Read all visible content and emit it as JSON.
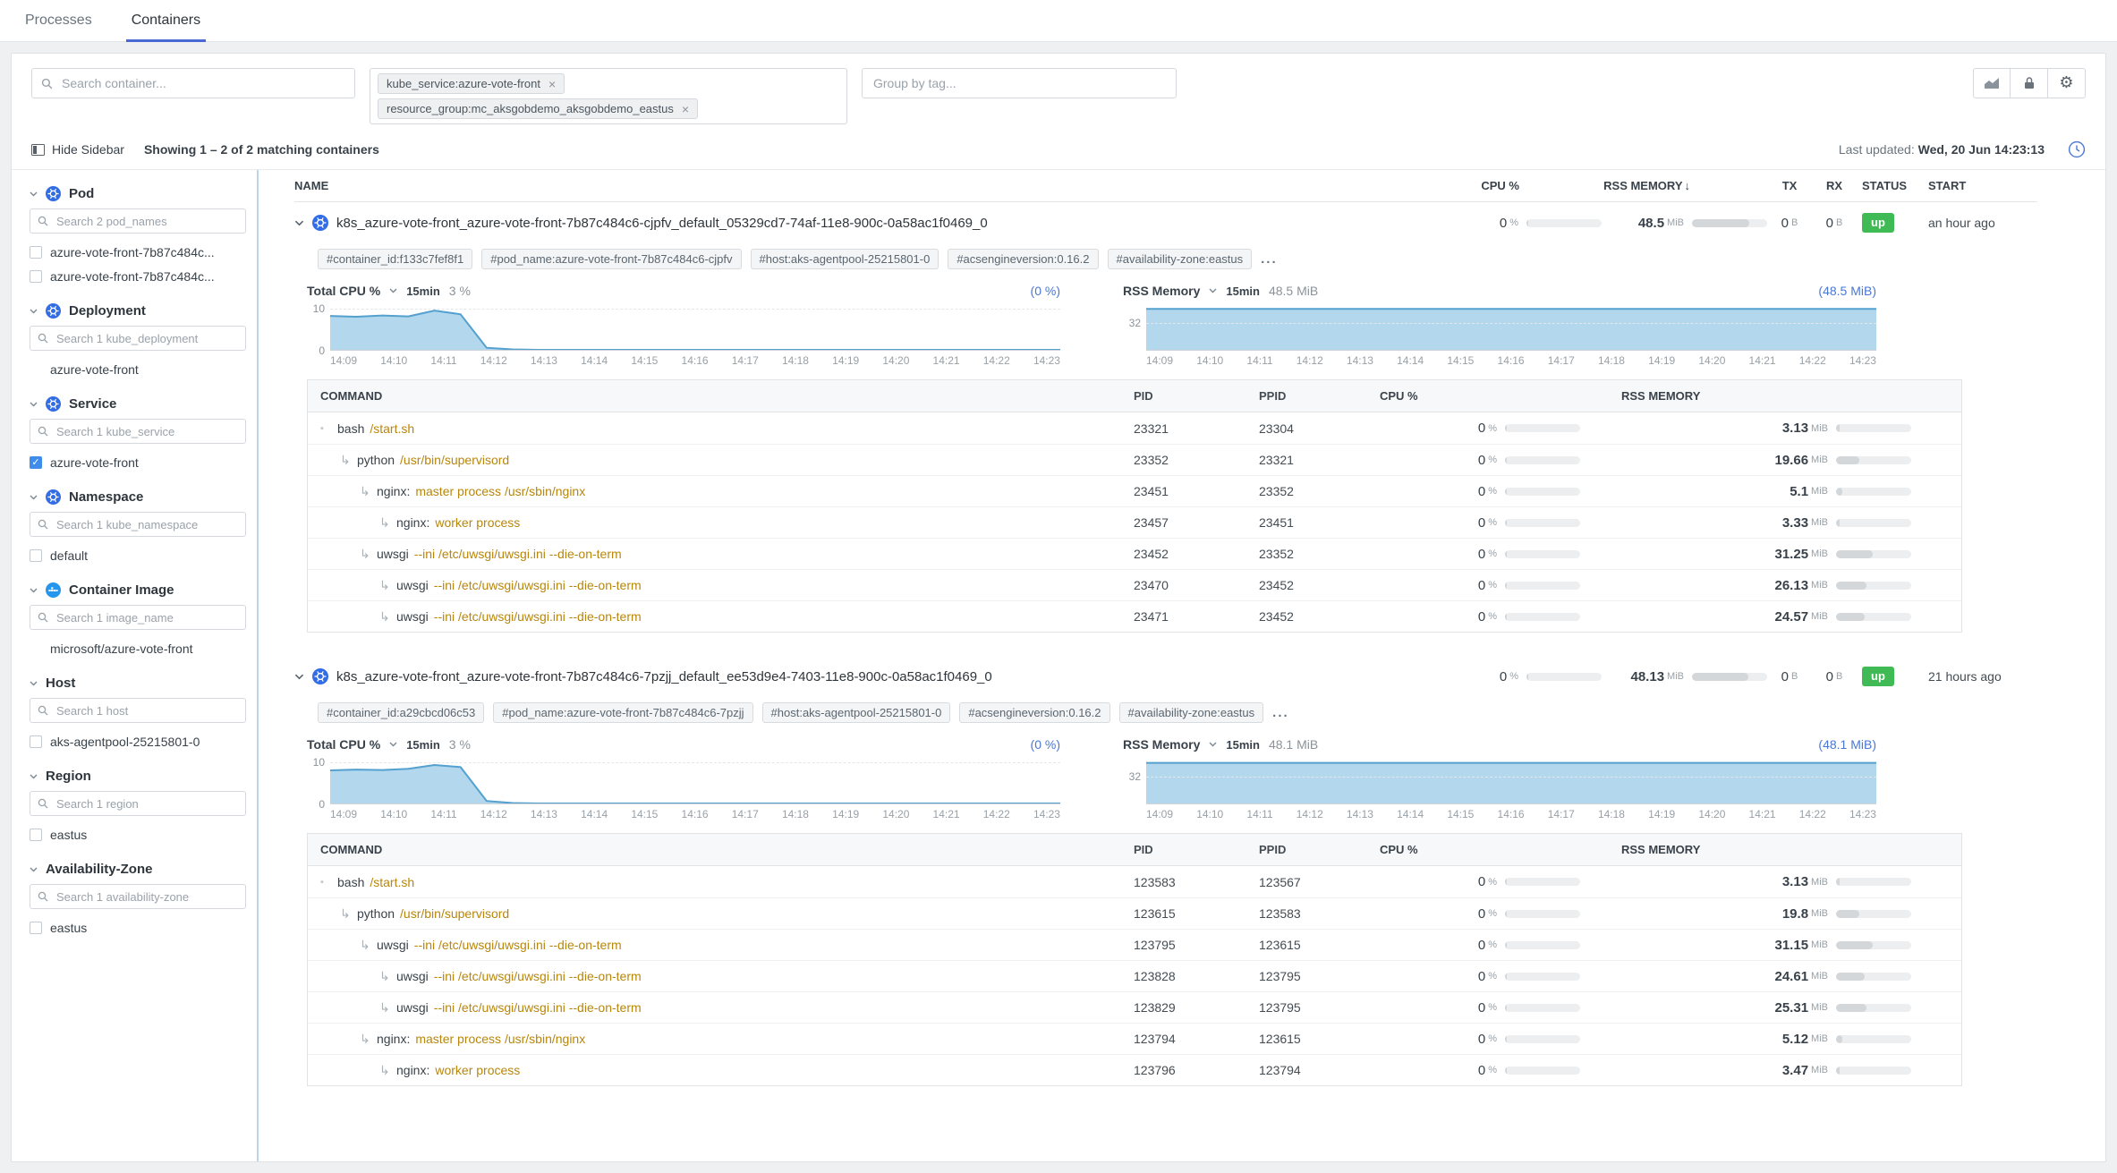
{
  "tabs": {
    "processes": "Processes",
    "containers": "Containers"
  },
  "toolbar": {
    "search_placeholder": "Search container...",
    "filters": [
      "kube_service:azure-vote-front",
      "resource_group:mc_aksgobdemo_aksgobdemo_eastus"
    ],
    "remove_icon": "×",
    "group_by_placeholder": "Group by tag..."
  },
  "subheader": {
    "hide_sidebar": "Hide Sidebar",
    "showing": "Showing 1 – 2 of 2 matching containers",
    "last_updated_label": "Last updated:",
    "last_updated_value": "Wed, 20 Jun 14:23:13"
  },
  "sidebar": {
    "facets": [
      {
        "label": "Pod",
        "icon": "kubernetes",
        "search": "Search 2 pod_names",
        "items": [
          {
            "label": "azure-vote-front-7b87c484c...",
            "checkbox": "unchecked"
          },
          {
            "label": "azure-vote-front-7b87c484c...",
            "checkbox": "unchecked"
          }
        ]
      },
      {
        "label": "Deployment",
        "icon": "kubernetes",
        "search": "Search 1 kube_deployment",
        "items": [
          {
            "label": "azure-vote-front",
            "checkbox": "none"
          }
        ]
      },
      {
        "label": "Service",
        "icon": "kubernetes",
        "search": "Search 1 kube_service",
        "items": [
          {
            "label": "azure-vote-front",
            "checkbox": "checked"
          }
        ]
      },
      {
        "label": "Namespace",
        "icon": "kubernetes",
        "search": "Search 1 kube_namespace",
        "items": [
          {
            "label": "default",
            "checkbox": "unchecked"
          }
        ]
      },
      {
        "label": "Container Image",
        "icon": "docker",
        "search": "Search 1 image_name",
        "items": [
          {
            "label": "microsoft/azure-vote-front",
            "checkbox": "none"
          }
        ]
      },
      {
        "label": "Host",
        "icon": null,
        "search": "Search 1 host",
        "items": [
          {
            "label": "aks-agentpool-25215801-0",
            "checkbox": "unchecked"
          }
        ]
      },
      {
        "label": "Region",
        "icon": null,
        "search": "Search 1 region",
        "items": [
          {
            "label": "eastus",
            "checkbox": "unchecked"
          }
        ]
      },
      {
        "label": "Availability-Zone",
        "icon": null,
        "search": "Search 1 availability-zone",
        "items": [
          {
            "label": "eastus",
            "checkbox": "unchecked"
          }
        ]
      }
    ]
  },
  "table_headers": {
    "name": "NAME",
    "cpu": "CPU %",
    "rss": "RSS MEMORY",
    "sort": "↓",
    "tx": "TX",
    "rx": "RX",
    "status": "STATUS",
    "start": "START"
  },
  "process_headers": {
    "command": "COMMAND",
    "pid": "PID",
    "ppid": "PPID",
    "cpu": "CPU %",
    "rss": "RSS MEMORY"
  },
  "units": {
    "percent": "%",
    "memory": "MiB",
    "network": "B"
  },
  "tags_more": "...",
  "chart_x": [
    "14:09",
    "14:10",
    "14:11",
    "14:12",
    "14:13",
    "14:14",
    "14:15",
    "14:16",
    "14:17",
    "14:18",
    "14:19",
    "14:20",
    "14:21",
    "14:22",
    "14:23"
  ],
  "colors": {
    "accent_blue": "#4a77d4",
    "tab_underline": "#4a69d2",
    "status_up_green": "#3fba54",
    "chart_fill": "#b3d7ed",
    "chart_line": "#54a0cf",
    "command_args_gold": "#b8860b",
    "checked_checkbox_blue": "#3f8ceb"
  },
  "containers": [
    {
      "name": "k8s_azure-vote-front_azure-vote-front-7b87c484c6-cjpfv_default_05329cd7-74af-11e8-900c-0a58ac1f0469_0",
      "cpu": "0",
      "rss": "48.5",
      "tx": "0",
      "rx": "0",
      "status": "up",
      "start": "an hour ago",
      "tags": [
        "#container_id:f133c7fef8f1",
        "#pod_name:azure-vote-front-7b87c484c6-cjpfv",
        "#host:aks-agentpool-25215801-0",
        "#acsengineversion:0.16.2",
        "#availability-zone:eastus"
      ],
      "cpu_chart": {
        "type": "area",
        "title": "Total CPU %",
        "range": "15min",
        "current": "3 %",
        "link": "(0 %)",
        "ymax": 10.6,
        "yticks": [
          {
            "label": "10",
            "value": 10
          },
          {
            "label": "0",
            "value": 0
          }
        ],
        "values": [
          8.2,
          8.0,
          8.3,
          8.1,
          9.5,
          8.6,
          0.5,
          0.1,
          0,
          0,
          0,
          0,
          0,
          0,
          0,
          0,
          0,
          0,
          0,
          0,
          0,
          0,
          0,
          0,
          0,
          0,
          0,
          0,
          0
        ]
      },
      "mem_chart": {
        "type": "area",
        "title": "RSS Memory",
        "range": "15min",
        "current": "48.5 MiB",
        "link": "(48.5 MiB)",
        "ymax": 52,
        "yticks": [
          {
            "label": "32",
            "value": 32
          }
        ],
        "values": [
          48.5,
          48.5,
          48.5
        ]
      },
      "processes": [
        {
          "indent": 0,
          "cmd": "bash",
          "args": "/start.sh",
          "pid": "23321",
          "ppid": "23304",
          "cpu": "0",
          "rss": "3.13"
        },
        {
          "indent": 1,
          "cmd": "python",
          "args": "/usr/bin/supervisord",
          "pid": "23352",
          "ppid": "23321",
          "cpu": "0",
          "rss": "19.66"
        },
        {
          "indent": 2,
          "cmd": "nginx:",
          "args": "master process /usr/sbin/nginx",
          "pid": "23451",
          "ppid": "23352",
          "cpu": "0",
          "rss": "5.1"
        },
        {
          "indent": 3,
          "cmd": "nginx:",
          "args": "worker process",
          "pid": "23457",
          "ppid": "23451",
          "cpu": "0",
          "rss": "3.33"
        },
        {
          "indent": 2,
          "cmd": "uwsgi",
          "args": "--ini /etc/uwsgi/uwsgi.ini --die-on-term",
          "pid": "23452",
          "ppid": "23352",
          "cpu": "0",
          "rss": "31.25"
        },
        {
          "indent": 3,
          "cmd": "uwsgi",
          "args": "--ini /etc/uwsgi/uwsgi.ini --die-on-term",
          "pid": "23470",
          "ppid": "23452",
          "cpu": "0",
          "rss": "26.13"
        },
        {
          "indent": 3,
          "cmd": "uwsgi",
          "args": "--ini /etc/uwsgi/uwsgi.ini --die-on-term",
          "pid": "23471",
          "ppid": "23452",
          "cpu": "0",
          "rss": "24.57"
        }
      ]
    },
    {
      "name": "k8s_azure-vote-front_azure-vote-front-7b87c484c6-7pzjj_default_ee53d9e4-7403-11e8-900c-0a58ac1f0469_0",
      "cpu": "0",
      "rss": "48.13",
      "tx": "0",
      "rx": "0",
      "status": "up",
      "start": "21 hours ago",
      "tags": [
        "#container_id:a29cbcd06c53",
        "#pod_name:azure-vote-front-7b87c484c6-7pzjj",
        "#host:aks-agentpool-25215801-0",
        "#acsengineversion:0.16.2",
        "#availability-zone:eastus"
      ],
      "cpu_chart": {
        "type": "area",
        "title": "Total CPU %",
        "range": "15min",
        "current": "3 %",
        "link": "(0 %)",
        "ymax": 10.6,
        "yticks": [
          {
            "label": "10",
            "value": 10
          },
          {
            "label": "0",
            "value": 0
          }
        ],
        "values": [
          8.0,
          8.2,
          8.1,
          8.4,
          9.3,
          8.8,
          0.6,
          0.1,
          0,
          0,
          0,
          0,
          0,
          0,
          0,
          0,
          0,
          0,
          0,
          0,
          0,
          0,
          0,
          0,
          0,
          0,
          0,
          0,
          0
        ]
      },
      "mem_chart": {
        "type": "area",
        "title": "RSS Memory",
        "range": "15min",
        "current": "48.1 MiB",
        "link": "(48.1 MiB)",
        "ymax": 52,
        "yticks": [
          {
            "label": "32",
            "value": 32
          }
        ],
        "values": [
          48.1,
          48.1,
          48.1
        ]
      },
      "processes": [
        {
          "indent": 0,
          "cmd": "bash",
          "args": "/start.sh",
          "pid": "123583",
          "ppid": "123567",
          "cpu": "0",
          "rss": "3.13"
        },
        {
          "indent": 1,
          "cmd": "python",
          "args": "/usr/bin/supervisord",
          "pid": "123615",
          "ppid": "123583",
          "cpu": "0",
          "rss": "19.8"
        },
        {
          "indent": 2,
          "cmd": "uwsgi",
          "args": "--ini /etc/uwsgi/uwsgi.ini --die-on-term",
          "pid": "123795",
          "ppid": "123615",
          "cpu": "0",
          "rss": "31.15"
        },
        {
          "indent": 3,
          "cmd": "uwsgi",
          "args": "--ini /etc/uwsgi/uwsgi.ini --die-on-term",
          "pid": "123828",
          "ppid": "123795",
          "cpu": "0",
          "rss": "24.61"
        },
        {
          "indent": 3,
          "cmd": "uwsgi",
          "args": "--ini /etc/uwsgi/uwsgi.ini --die-on-term",
          "pid": "123829",
          "ppid": "123795",
          "cpu": "0",
          "rss": "25.31"
        },
        {
          "indent": 2,
          "cmd": "nginx:",
          "args": "master process /usr/sbin/nginx",
          "pid": "123794",
          "ppid": "123615",
          "cpu": "0",
          "rss": "5.12"
        },
        {
          "indent": 3,
          "cmd": "nginx:",
          "args": "worker process",
          "pid": "123796",
          "ppid": "123794",
          "cpu": "0",
          "rss": "3.47"
        }
      ]
    }
  ]
}
